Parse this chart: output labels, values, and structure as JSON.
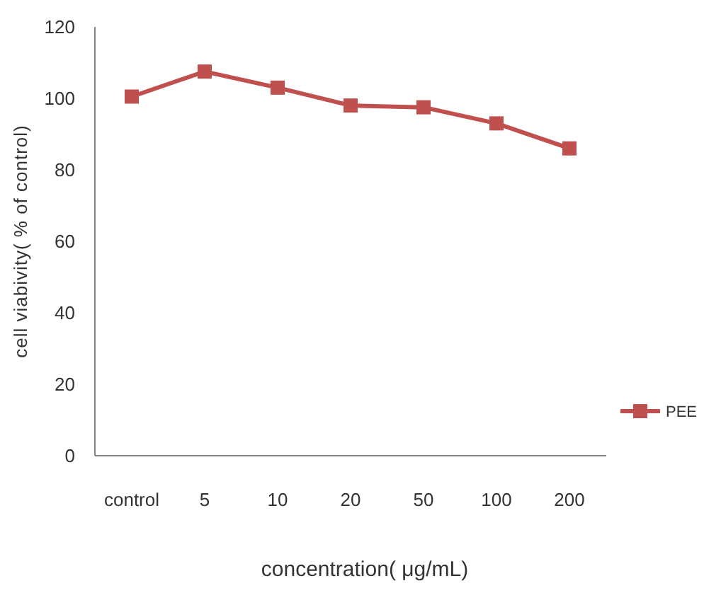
{
  "chart_data": {
    "type": "line",
    "xlabel": "concentration( μg/mL)",
    "ylabel": "cell viabivity( % of control)",
    "categories": [
      "control",
      "5",
      "10",
      "20",
      "50",
      "100",
      "200"
    ],
    "series": [
      {
        "name": "PEE",
        "color": "#c0504d",
        "values": [
          100.5,
          107.5,
          103,
          98,
          97.5,
          93,
          86
        ]
      }
    ],
    "ylim": [
      0,
      120
    ],
    "yticks": [
      0,
      20,
      40,
      60,
      80,
      100,
      120
    ],
    "grid": false,
    "legend": "right",
    "marker": "square",
    "line_style": "solid"
  }
}
